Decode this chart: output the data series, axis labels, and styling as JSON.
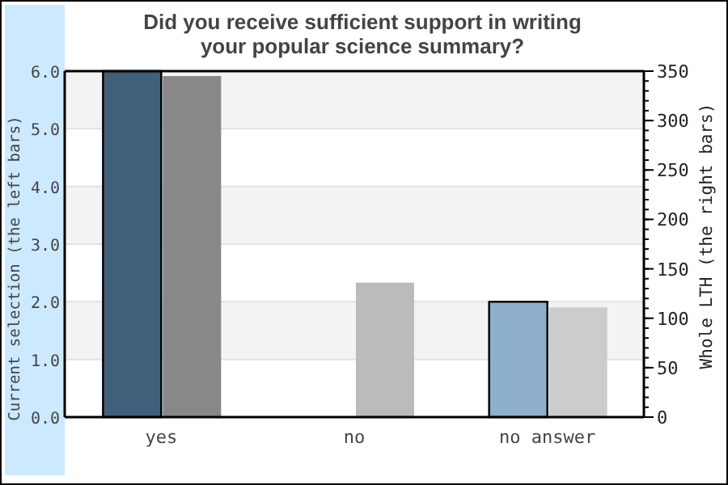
{
  "chart_data": {
    "type": "bar",
    "title": "Did you receive sufficient support in writing your popular science summary?",
    "ylabel": "Current selection (the left bars)",
    "y2label": "Whole LTH (the right bars)",
    "categories": [
      "yes",
      "no",
      "no answer"
    ],
    "series": [
      {
        "colors": [
          "#3f5f7a",
          "#8fb0cc",
          "#8fb0cc"
        ],
        "values": [
          6,
          0,
          2
        ]
      },
      {
        "colors": [
          "#888888",
          "#bbbbbb",
          "#cccccc"
        ],
        "values": [
          345,
          136,
          111
        ],
        "axis": "y2"
      }
    ],
    "ylim": [
      0,
      6
    ],
    "yticks": [
      {
        "value": 0,
        "label": "0.0"
      },
      {
        "value": 1,
        "label": "1.0"
      },
      {
        "value": 2,
        "label": "2.0"
      },
      {
        "value": 3,
        "label": "3.0"
      },
      {
        "value": 4,
        "label": "4.0"
      },
      {
        "value": 5,
        "label": "5.0"
      },
      {
        "value": 6,
        "label": "6.0"
      }
    ],
    "y2lim": [
      0,
      350
    ],
    "y2ticks": [
      0,
      50,
      100,
      150,
      200,
      250,
      300,
      350
    ],
    "grid": "y"
  }
}
